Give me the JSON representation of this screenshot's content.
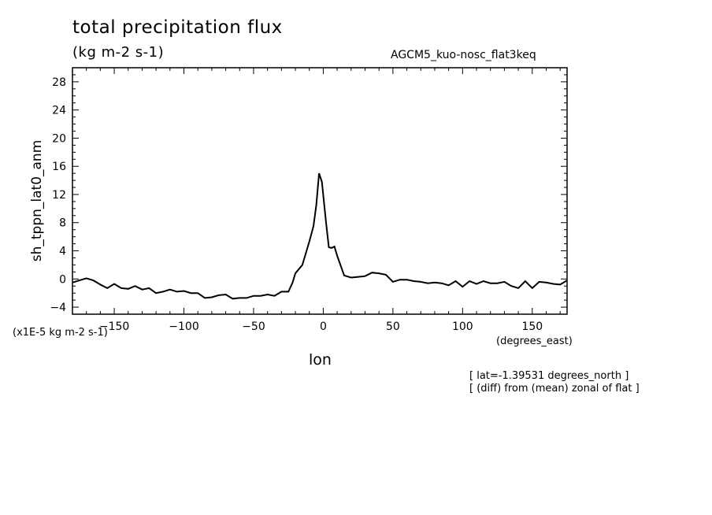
{
  "header": {
    "title": "total precipitation flux",
    "units": "(kg m-2 s-1)",
    "experiment": "AGCM5_kuo-nosc_flat3keq"
  },
  "annotations": {
    "scale_note": "(x1E-5 kg m-2 s-1)",
    "x_units": "(degrees_east)",
    "note_lat": "[ lat=-1.39531 degrees_north ]",
    "note_diff": "[ (diff) from (mean) zonal of flat ]"
  },
  "chart_data": {
    "type": "line",
    "title": "total precipitation flux",
    "xlabel": "lon",
    "ylabel": "sh_tppn_lat0_anm",
    "xlim": [
      -180,
      175
    ],
    "ylim": [
      -5,
      30
    ],
    "xticks": [
      -150,
      -100,
      -50,
      0,
      50,
      100,
      150
    ],
    "yticks": [
      -4,
      0,
      4,
      8,
      12,
      16,
      20,
      24,
      28
    ],
    "grid": false,
    "series": [
      {
        "x": [
          -180,
          -175,
          -170,
          -165,
          -160,
          -155,
          -150,
          -145,
          -140,
          -135,
          -130,
          -125,
          -120,
          -115,
          -110,
          -105,
          -100,
          -95,
          -90,
          -85,
          -80,
          -75,
          -70,
          -65,
          -60,
          -55,
          -50,
          -45,
          -40,
          -35,
          -30,
          -25,
          -22,
          -20,
          -15,
          -10,
          -7,
          -5,
          -3,
          -1,
          2,
          4,
          6,
          8,
          10,
          15,
          20,
          25,
          30,
          35,
          40,
          45,
          50,
          55,
          60,
          65,
          70,
          75,
          80,
          85,
          90,
          95,
          100,
          105,
          110,
          115,
          120,
          125,
          130,
          135,
          140,
          145,
          150,
          155,
          160,
          165,
          170,
          175
        ],
        "y": [
          -0.5,
          -0.2,
          0.1,
          -0.2,
          -0.8,
          -1.3,
          -0.7,
          -1.3,
          -1.4,
          -1.0,
          -1.5,
          -1.3,
          -2.0,
          -1.8,
          -1.5,
          -1.8,
          -1.7,
          -2.0,
          -2.0,
          -2.7,
          -2.6,
          -2.3,
          -2.2,
          -2.8,
          -2.7,
          -2.7,
          -2.4,
          -2.4,
          -2.2,
          -2.4,
          -1.8,
          -1.8,
          -0.5,
          0.8,
          2.0,
          5.3,
          7.5,
          10.5,
          15.0,
          13.8,
          8.0,
          4.5,
          4.4,
          4.6,
          3.3,
          0.5,
          0.2,
          0.3,
          0.4,
          0.9,
          0.8,
          0.6,
          -0.4,
          -0.1,
          -0.1,
          -0.3,
          -0.4,
          -0.6,
          -0.5,
          -0.6,
          -0.9,
          -0.3,
          -1.1,
          -0.3,
          -0.7,
          -0.3,
          -0.6,
          -0.6,
          -0.4,
          -1.0,
          -1.3,
          -0.3,
          -1.3,
          -0.4,
          -0.5,
          -0.7,
          -0.8,
          -0.2
        ]
      }
    ]
  }
}
